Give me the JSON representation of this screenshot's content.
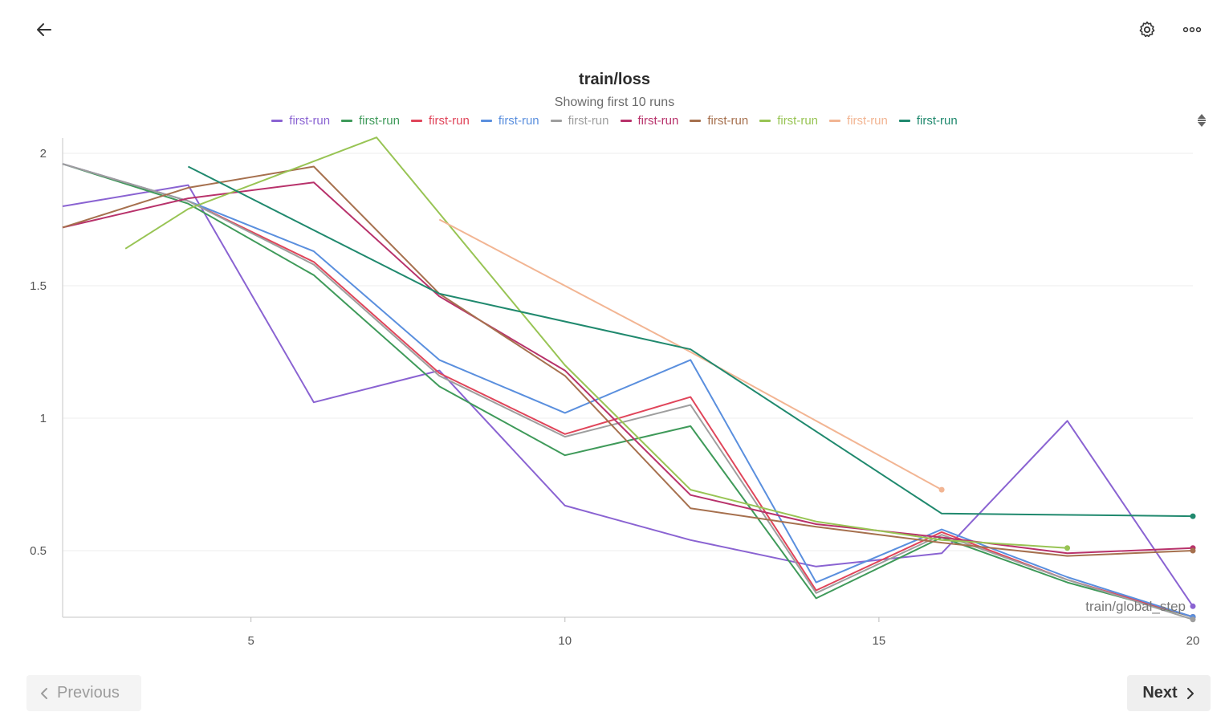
{
  "header": {
    "back_icon": "arrow-left-icon",
    "settings_icon": "gear-icon",
    "more_icon": "more-horizontal-icon"
  },
  "chart_data": {
    "type": "line",
    "title": "train/loss",
    "subtitle": "Showing first 10 runs",
    "xlabel": "train/global_step",
    "ylabel": "",
    "xlim": [
      2,
      20
    ],
    "ylim": [
      0.25,
      2.05
    ],
    "x_ticks": [
      5,
      10,
      15,
      20
    ],
    "y_ticks": [
      0.5,
      1,
      1.5,
      2
    ],
    "x_tick_labels": [
      "5",
      "10",
      "15",
      "20"
    ],
    "y_tick_labels": [
      "0.5",
      "1",
      "1.5",
      "2"
    ],
    "grid": true,
    "legend_position": "top-center",
    "series": [
      {
        "name": "first-run",
        "color": "#8a63d2",
        "x": [
          2,
          4,
          6,
          8,
          10,
          12,
          14,
          16,
          18,
          20
        ],
        "y": [
          1.8,
          1.88,
          1.06,
          1.18,
          0.67,
          0.54,
          0.44,
          0.49,
          0.99,
          0.29
        ],
        "end_marker": true
      },
      {
        "name": "first-run",
        "color": "#3f9a5a",
        "x": [
          2,
          4,
          6,
          8,
          10,
          12,
          14,
          16,
          18,
          20
        ],
        "y": [
          1.96,
          1.81,
          1.54,
          1.12,
          0.86,
          0.97,
          0.32,
          0.55,
          0.38,
          0.25
        ],
        "end_marker": true
      },
      {
        "name": "first-run",
        "color": "#e0455a",
        "x": [
          2,
          4,
          6,
          8,
          10,
          12,
          14,
          16,
          18,
          20
        ],
        "y": [
          1.96,
          1.82,
          1.59,
          1.17,
          0.94,
          1.08,
          0.35,
          0.57,
          0.39,
          0.25
        ],
        "end_marker": true
      },
      {
        "name": "first-run",
        "color": "#5a8fde",
        "x": [
          2,
          4,
          6,
          8,
          10,
          12,
          14,
          16,
          18,
          20
        ],
        "y": [
          1.96,
          1.82,
          1.63,
          1.22,
          1.02,
          1.22,
          0.38,
          0.58,
          0.4,
          0.25
        ],
        "end_marker": true
      },
      {
        "name": "first-run",
        "color": "#9e9e9e",
        "x": [
          2,
          4,
          6,
          8,
          10,
          12,
          14,
          16,
          18,
          20
        ],
        "y": [
          1.96,
          1.82,
          1.58,
          1.16,
          0.93,
          1.05,
          0.34,
          0.56,
          0.39,
          0.24
        ],
        "end_marker": true
      },
      {
        "name": "first-run",
        "color": "#b8326b",
        "x": [
          2,
          4,
          6,
          8,
          10,
          12,
          14,
          16,
          18,
          20
        ],
        "y": [
          1.72,
          1.83,
          1.89,
          1.46,
          1.18,
          0.71,
          0.6,
          0.55,
          0.49,
          0.51
        ],
        "end_marker": true
      },
      {
        "name": "first-run",
        "color": "#a6704e",
        "x": [
          2,
          4,
          6,
          8,
          10,
          12,
          14,
          16,
          18,
          20
        ],
        "y": [
          1.72,
          1.87,
          1.95,
          1.47,
          1.16,
          0.66,
          0.59,
          0.53,
          0.48,
          0.5
        ],
        "end_marker": true
      },
      {
        "name": "first-run",
        "color": "#98c454",
        "x": [
          3,
          4,
          7,
          10,
          12,
          14,
          16,
          18
        ],
        "y": [
          1.64,
          1.79,
          2.06,
          1.2,
          0.73,
          0.61,
          0.54,
          0.51
        ],
        "end_marker": true
      },
      {
        "name": "first-run",
        "color": "#f2b593",
        "x": [
          8,
          12,
          16
        ],
        "y": [
          1.75,
          1.25,
          0.73
        ],
        "end_marker": true
      },
      {
        "name": "first-run",
        "color": "#20896e",
        "x": [
          4,
          8,
          12,
          16,
          20
        ],
        "y": [
          1.95,
          1.47,
          1.26,
          0.64,
          0.63
        ],
        "end_marker": true
      }
    ]
  },
  "pagination": {
    "prev_label": "Previous",
    "next_label": "Next",
    "prev_icon": "chevron-left-icon",
    "next_icon": "chevron-right-icon"
  }
}
